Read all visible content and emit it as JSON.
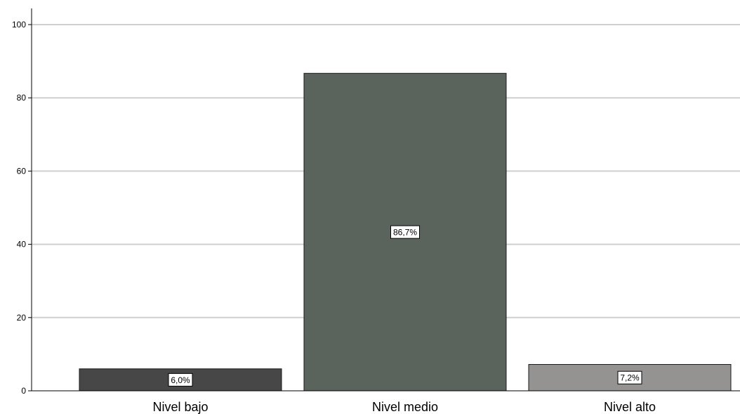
{
  "chart_data": {
    "type": "bar",
    "title": "",
    "xlabel": "",
    "ylabel": "",
    "categories": [
      "Nivel bajo",
      "Nivel medio",
      "Nivel alto"
    ],
    "values": [
      6.0,
      86.7,
      7.2
    ],
    "data_labels": [
      "6,0%",
      "86,7%",
      "7,2%"
    ],
    "bar_colors": [
      "#474747",
      "#5b635d",
      "#959391"
    ],
    "ylim": [
      0,
      100
    ],
    "yticks": [
      0,
      20,
      40,
      60,
      80,
      100
    ],
    "ytick_labels": [
      "0",
      "20",
      "40",
      "60",
      "80",
      "100"
    ],
    "grid": true,
    "legend": "none"
  }
}
